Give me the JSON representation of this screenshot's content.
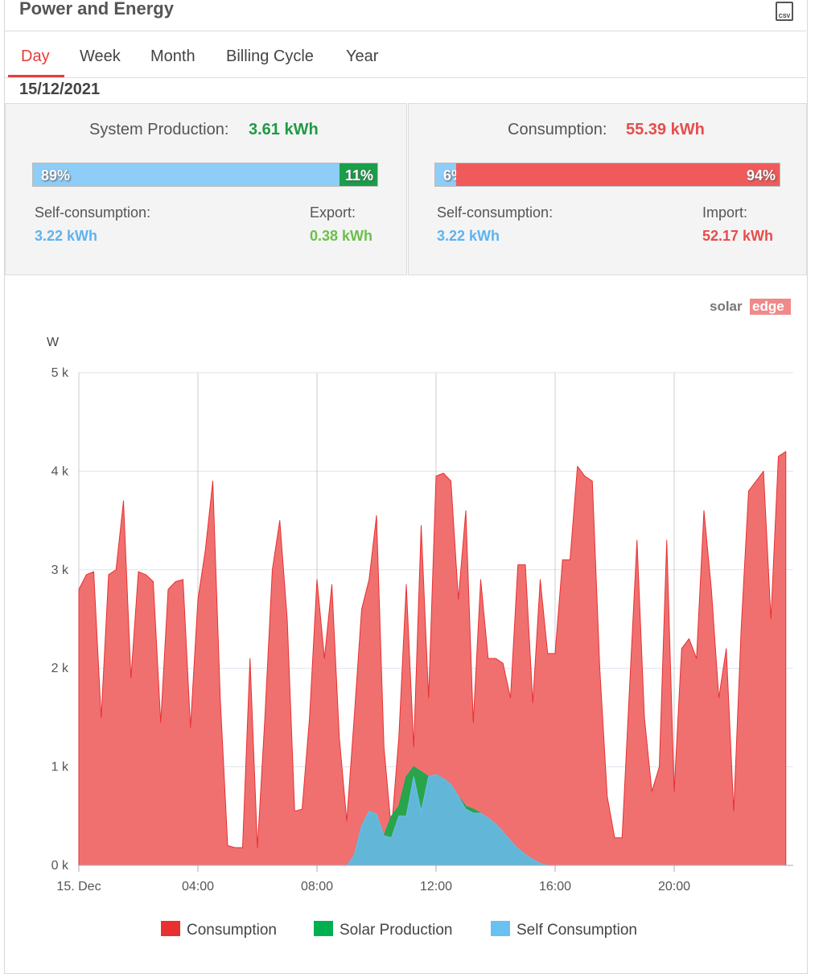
{
  "header": {
    "title": "Power and Energy",
    "csv_icon": "CSV"
  },
  "tabs": [
    "Day",
    "Week",
    "Month",
    "Billing Cycle",
    "Year"
  ],
  "active_tab": 0,
  "date": "15/12/2021",
  "production": {
    "label": "System Production:",
    "total": "3.61 kWh",
    "bar": {
      "values": [
        89,
        11
      ],
      "value_labels": [
        "89%",
        "11%"
      ],
      "colors": [
        "#8ecdf7",
        "#1a9e4a"
      ]
    },
    "left_label": "Self-consumption:",
    "left_value": "3.22 kWh",
    "right_label": "Export:",
    "right_value": "0.38 kWh"
  },
  "consumption": {
    "label": "Consumption:",
    "total": "55.39 kWh",
    "bar": {
      "values": [
        6,
        94
      ],
      "value_labels": [
        "6%",
        "94%"
      ],
      "colors": [
        "#8ecdf7",
        "#f05a5a"
      ]
    },
    "left_label": "Self-consumption:",
    "left_value": "3.22 kWh",
    "right_label": "Import:",
    "right_value": "52.17 kWh"
  },
  "logo": [
    "solar",
    "edge"
  ],
  "chart_data": {
    "type": "area",
    "y_label": "W",
    "x": [
      0,
      0.25,
      0.5,
      0.75,
      1,
      1.25,
      1.5,
      1.75,
      2,
      2.25,
      2.5,
      2.75,
      3,
      3.25,
      3.5,
      3.75,
      4,
      4.25,
      4.5,
      4.75,
      5,
      5.25,
      5.5,
      5.75,
      6,
      6.25,
      6.5,
      6.75,
      7,
      7.25,
      7.5,
      7.75,
      8,
      8.25,
      8.5,
      8.75,
      9,
      9.25,
      9.5,
      9.75,
      10,
      10.25,
      10.5,
      10.75,
      11,
      11.25,
      11.5,
      11.75,
      12,
      12.25,
      12.5,
      12.75,
      13,
      13.25,
      13.5,
      13.75,
      14,
      14.25,
      14.5,
      14.75,
      15,
      15.25,
      15.5,
      15.75,
      16,
      16.25,
      16.5,
      16.75,
      17,
      17.25,
      17.5,
      17.75,
      18,
      18.25,
      18.5,
      18.75,
      19,
      19.25,
      19.5,
      19.75,
      20,
      20.25,
      20.5,
      20.75,
      21,
      21.25,
      21.5,
      21.75,
      22,
      22.25,
      22.5,
      22.75,
      23,
      23.25,
      23.5,
      23.75
    ],
    "series": [
      {
        "name": "Consumption",
        "color": "#e83030",
        "fill": "#f07070",
        "values": [
          2800,
          2950,
          2980,
          1500,
          2950,
          3000,
          3700,
          1900,
          2980,
          2950,
          2880,
          1450,
          2800,
          2880,
          2900,
          1400,
          2700,
          3200,
          3900,
          1700,
          200,
          180,
          180,
          2100,
          180,
          1500,
          3000,
          3500,
          2500,
          550,
          570,
          1500,
          2900,
          2100,
          2850,
          1300,
          450,
          1500,
          2600,
          2900,
          3550,
          1200,
          350,
          1300,
          2850,
          1200,
          3450,
          1700,
          3950,
          3980,
          3900,
          2700,
          3600,
          1450,
          2900,
          2100,
          2100,
          2050,
          1700,
          3050,
          3050,
          1650,
          2900,
          2150,
          2150,
          3100,
          3100,
          4050,
          3950,
          3900,
          2000,
          700,
          280,
          280,
          1800,
          3300,
          1500,
          750,
          1000,
          3300,
          750,
          2200,
          2300,
          2100,
          3600,
          2800,
          1700,
          2200,
          550,
          2400,
          3800,
          3900,
          4000,
          2500,
          4150,
          4200
        ]
      },
      {
        "name": "Solar Production",
        "color": "#00b050",
        "fill": "#2aa44a",
        "values": [
          0,
          0,
          0,
          0,
          0,
          0,
          0,
          0,
          0,
          0,
          0,
          0,
          0,
          0,
          0,
          0,
          0,
          0,
          0,
          0,
          0,
          0,
          0,
          0,
          0,
          0,
          0,
          0,
          0,
          0,
          0,
          0,
          0,
          0,
          0,
          0,
          0,
          100,
          400,
          550,
          520,
          300,
          500,
          600,
          900,
          1000,
          950,
          900,
          920,
          880,
          820,
          700,
          600,
          570,
          530,
          480,
          420,
          340,
          250,
          170,
          110,
          60,
          20,
          0,
          0,
          0,
          0,
          0,
          0,
          0,
          0,
          0,
          0,
          0,
          0,
          0,
          0,
          0,
          0,
          0,
          0,
          0,
          0,
          0,
          0,
          0,
          0,
          0,
          0,
          0,
          0,
          0,
          0,
          0,
          0,
          0
        ]
      },
      {
        "name": "Self Consumption",
        "color": "#6ac0f0",
        "fill": "#62b7d8",
        "values": [
          0,
          0,
          0,
          0,
          0,
          0,
          0,
          0,
          0,
          0,
          0,
          0,
          0,
          0,
          0,
          0,
          0,
          0,
          0,
          0,
          0,
          0,
          0,
          0,
          0,
          0,
          0,
          0,
          0,
          0,
          0,
          0,
          0,
          0,
          0,
          0,
          0,
          100,
          400,
          550,
          520,
          300,
          280,
          500,
          500,
          900,
          550,
          900,
          920,
          880,
          820,
          700,
          570,
          530,
          530,
          480,
          420,
          340,
          250,
          170,
          110,
          60,
          20,
          0,
          0,
          0,
          0,
          0,
          0,
          0,
          0,
          0,
          0,
          0,
          0,
          0,
          0,
          0,
          0,
          0,
          0,
          0,
          0,
          0,
          0,
          0,
          0,
          0,
          0,
          0,
          0,
          0,
          0,
          0,
          0,
          0
        ]
      }
    ],
    "xlim": [
      0,
      24
    ],
    "xticks": [
      {
        "value": 0,
        "label": "15. Dec"
      },
      {
        "value": 4,
        "label": "04:00"
      },
      {
        "value": 8,
        "label": "08:00"
      },
      {
        "value": 12,
        "label": "12:00"
      },
      {
        "value": 16,
        "label": "16:00"
      },
      {
        "value": 20,
        "label": "20:00"
      }
    ],
    "ylim": [
      0,
      5000
    ],
    "yticks": [
      {
        "value": 0,
        "label": "0 k"
      },
      {
        "value": 1000,
        "label": "1 k"
      },
      {
        "value": 2000,
        "label": "2 k"
      },
      {
        "value": 3000,
        "label": "3 k"
      },
      {
        "value": 4000,
        "label": "4 k"
      },
      {
        "value": 5000,
        "label": "5 k"
      }
    ],
    "grid": true
  }
}
